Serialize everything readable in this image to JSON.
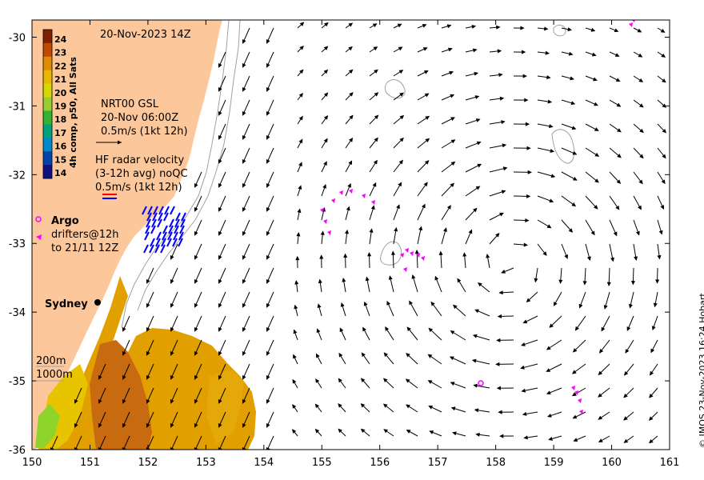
{
  "map": {
    "date": "20-Nov-2023 14Z",
    "credit": "© IMOS 23-Nov-2023 16:24 Hobart",
    "colors": {
      "land": "#fcc89b",
      "ocean": "#ffffff",
      "drifter": "#ff00ff",
      "radar_red": "#ff0000",
      "radar_blue": "#0000ff",
      "contour": "#a0a0a0"
    },
    "x_axis": {
      "range": [
        150,
        161
      ],
      "tick_labels": [
        "150",
        "151",
        "152",
        "153",
        "154",
        "155",
        "156",
        "157",
        "158",
        "159",
        "160",
        "161"
      ]
    },
    "y_axis": {
      "range": [
        -36,
        -29.75
      ],
      "tick_labels": [
        "-30",
        "-31",
        "-32",
        "-33",
        "-34",
        "-35",
        "-36"
      ]
    },
    "colorbar": {
      "title": "4h comp, p50, All Sats",
      "labels": [
        "24",
        "23",
        "22",
        "21",
        "20",
        "19",
        "18",
        "17",
        "16",
        "15",
        "14"
      ],
      "colors": [
        "#7f1f00",
        "#c24a00",
        "#e08b00",
        "#e8b800",
        "#d6d600",
        "#9acd32",
        "#33b233",
        "#00a37a",
        "#0088c8",
        "#0044aa",
        "#101080"
      ]
    },
    "legend": {
      "gsl_line1": "NRT00 GSL",
      "gsl_line2": "20-Nov 06:00Z",
      "gsl_line3": "0.5m/s (1kt 12h)",
      "hf_line1": "HF radar velocity",
      "hf_line2": "(3-12h avg) noQC",
      "hf_line3": "0.5m/s (1kt 12h)",
      "argo": "Argo",
      "drifters_line1": "drifters@12h",
      "drifters_line2": "to 21/11 12Z",
      "depth_200": "200m",
      "depth_1000": "1000m"
    },
    "places": {
      "sydney": "Sydney"
    }
  }
}
